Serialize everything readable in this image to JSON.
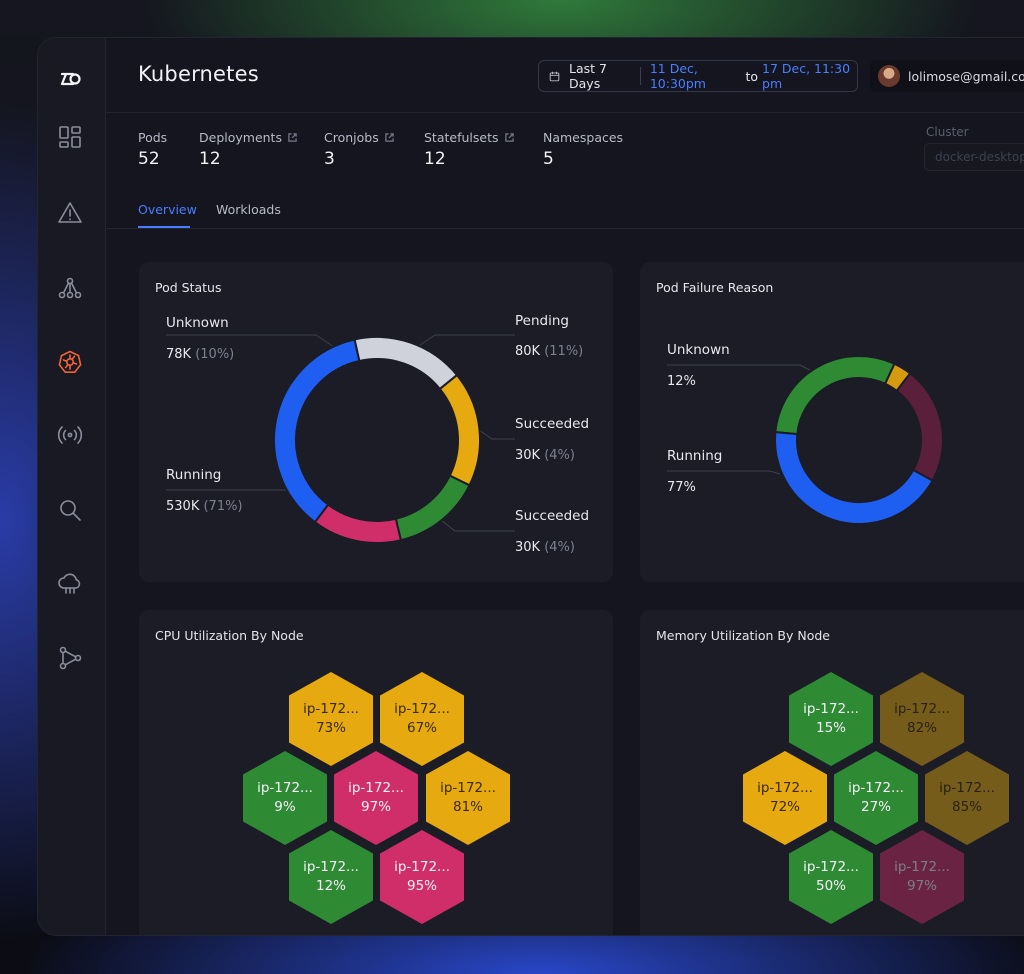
{
  "header": {
    "title": "Kubernetes",
    "date_preset": "Last 7 Days",
    "date_from": "11 Dec, 10:30pm",
    "date_to_word": "to",
    "date_to": "17 Dec, 11:30 pm",
    "user_email": "lolimose@gmail.com"
  },
  "stats": [
    {
      "label": "Pods",
      "value": "52"
    },
    {
      "label": "Deployments",
      "value": "12"
    },
    {
      "label": "Cronjobs",
      "value": "3"
    },
    {
      "label": "Statefulsets",
      "value": "12"
    },
    {
      "label": "Namespaces",
      "value": "5"
    }
  ],
  "cluster": {
    "label": "Cluster",
    "value": "docker-desktop"
  },
  "tabs": [
    {
      "label": "Overview",
      "active": true
    },
    {
      "label": "Workloads",
      "active": false
    }
  ],
  "pod_status": {
    "title": "Pod Status",
    "labels": [
      {
        "name": "Unknown",
        "value": "78K",
        "pct": "(10%)"
      },
      {
        "name": "Pending",
        "value": "80K",
        "pct": "(11%)"
      },
      {
        "name": "Succeeded",
        "value": "30K",
        "pct": "(4%)"
      },
      {
        "name": "Succeeded",
        "value": "30K",
        "pct": "(4%)"
      },
      {
        "name": "Running",
        "value": "530K",
        "pct": "(71%)"
      }
    ]
  },
  "pod_failure": {
    "title": "Pod Failure Reason",
    "labels": [
      {
        "name": "Unknown",
        "value": "12%"
      },
      {
        "name": "Running",
        "value": "77%"
      }
    ]
  },
  "cpu": {
    "title": "CPU Utilization By Node",
    "nodes": [
      {
        "name": "ip-172...",
        "value": "73%",
        "color": "#e6aa10"
      },
      {
        "name": "ip-172...",
        "value": "67%",
        "color": "#e6aa10"
      },
      {
        "name": "ip-172...",
        "value": "9%",
        "color": "#2f8a34"
      },
      {
        "name": "ip-172...",
        "value": "97%",
        "color": "#cf2e69"
      },
      {
        "name": "ip-172...",
        "value": "81%",
        "color": "#e6aa10"
      },
      {
        "name": "ip-172...",
        "value": "12%",
        "color": "#2f8a34"
      },
      {
        "name": "ip-172...",
        "value": "95%",
        "color": "#cf2e69"
      }
    ]
  },
  "memory": {
    "title": "Memory Utilization By Node",
    "nodes": [
      {
        "name": "ip-172...",
        "value": "15%",
        "color": "#2f8a34"
      },
      {
        "name": "ip-172...",
        "value": "82%",
        "color": "#e6aa10"
      },
      {
        "name": "ip-172...",
        "value": "72%",
        "color": "#e6aa10"
      },
      {
        "name": "ip-172...",
        "value": "27%",
        "color": "#2f8a34"
      },
      {
        "name": "ip-172...",
        "value": "85%",
        "color": "#e6aa10"
      },
      {
        "name": "ip-172...",
        "value": "50%",
        "color": "#2f8a34"
      },
      {
        "name": "ip-172...",
        "value": "97%",
        "color": "#cf2e69"
      }
    ]
  },
  "chart_data": [
    {
      "type": "pie",
      "title": "Pod Status",
      "categories": [
        "Unknown",
        "Pending",
        "Succeeded",
        "Succeeded",
        "Running"
      ],
      "values": [
        78000,
        80000,
        30000,
        30000,
        530000
      ],
      "percent": [
        10,
        11,
        4,
        4,
        71
      ],
      "colors": [
        "#cfd2da",
        "#e6aa10",
        "#2f8a34",
        "#cf2e69",
        "#1e5ef0"
      ]
    },
    {
      "type": "pie",
      "title": "Pod Failure Reason",
      "categories": [
        "Unknown",
        "Running"
      ],
      "values": [
        12,
        77
      ],
      "colors": [
        "#2f8a34",
        "#1e5ef0"
      ]
    }
  ],
  "icons": [
    "logo-icon",
    "dashboard-icon",
    "alert-icon",
    "topology-icon",
    "kubernetes-icon",
    "signal-icon",
    "search-icon",
    "cloud-icon",
    "graph-icon",
    "calendar-icon",
    "external-link-icon"
  ]
}
